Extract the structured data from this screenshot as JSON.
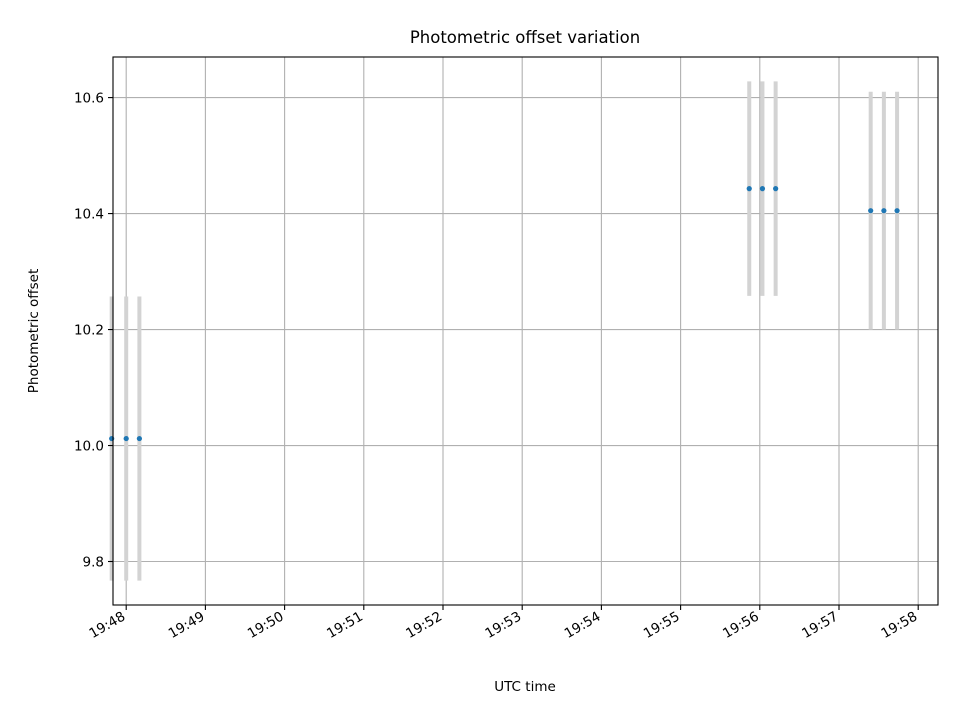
{
  "chart_data": {
    "type": "scatter",
    "title": "Photometric offset variation",
    "xlabel": "UTC time",
    "ylabel": "Photometric offset",
    "grid": true,
    "x_ticks": [
      "19:48",
      "19:49",
      "19:50",
      "19:51",
      "19:52",
      "19:53",
      "19:54",
      "19:55",
      "19:56",
      "19:57",
      "19:58"
    ],
    "y_ticks": [
      "9.8",
      "10.0",
      "10.2",
      "10.4",
      "10.6"
    ],
    "xlim": [
      "19:47:50",
      "19:58:15"
    ],
    "ylim": [
      9.725,
      10.67
    ],
    "series": [
      {
        "x": [
          "19:47:49",
          "19:48:00",
          "19:48:10",
          "19:55:52",
          "19:56:02",
          "19:56:12",
          "19:57:24",
          "19:57:34",
          "19:57:44"
        ],
        "y": [
          10.012,
          10.012,
          10.012,
          10.443,
          10.443,
          10.443,
          10.405,
          10.405,
          10.405
        ],
        "yerr": [
          0.245,
          0.245,
          0.245,
          0.185,
          0.185,
          0.185,
          0.205,
          0.205,
          0.205
        ],
        "marker_color": "#1f77b4",
        "errorbar_color": "#d3d3d3"
      }
    ]
  }
}
